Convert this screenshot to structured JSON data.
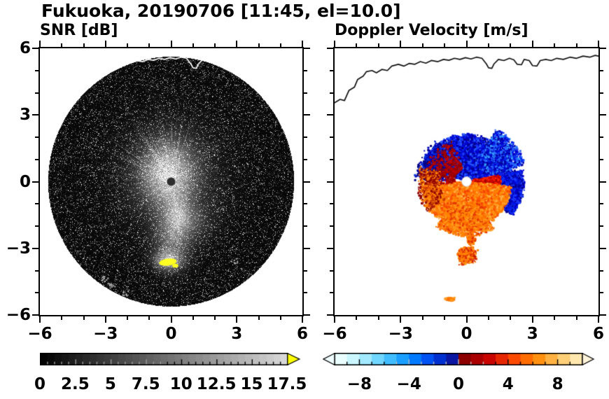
{
  "figure": {
    "title": "Fukuoka, 20190706 [11:45, el=10.0]",
    "background": "#ffffff",
    "text_color": "#000000"
  },
  "coastline": [
    [
      -6.0,
      3.55
    ],
    [
      -5.75,
      3.7
    ],
    [
      -5.55,
      3.65
    ],
    [
      -5.35,
      4.1
    ],
    [
      -5.1,
      4.25
    ],
    [
      -4.95,
      4.6
    ],
    [
      -4.7,
      4.75
    ],
    [
      -4.55,
      4.95
    ],
    [
      -4.3,
      5.0
    ],
    [
      -4.1,
      4.9
    ],
    [
      -3.85,
      5.05
    ],
    [
      -3.6,
      5.0
    ],
    [
      -3.4,
      5.2
    ],
    [
      -3.1,
      5.28
    ],
    [
      -2.85,
      5.2
    ],
    [
      -2.6,
      5.32
    ],
    [
      -2.35,
      5.28
    ],
    [
      -2.1,
      5.4
    ],
    [
      -1.85,
      5.33
    ],
    [
      -1.6,
      5.45
    ],
    [
      -1.3,
      5.4
    ],
    [
      -1.05,
      5.5
    ],
    [
      -0.8,
      5.46
    ],
    [
      -0.55,
      5.55
    ],
    [
      -0.3,
      5.5
    ],
    [
      -0.05,
      5.58
    ],
    [
      0.2,
      5.52
    ],
    [
      0.45,
      5.6
    ],
    [
      0.7,
      5.55
    ],
    [
      0.9,
      5.3
    ],
    [
      1.0,
      5.12
    ],
    [
      1.15,
      5.1
    ],
    [
      1.25,
      5.3
    ],
    [
      1.45,
      5.5
    ],
    [
      1.7,
      5.45
    ],
    [
      1.95,
      5.55
    ],
    [
      2.15,
      5.48
    ],
    [
      2.3,
      5.28
    ],
    [
      2.5,
      5.26
    ],
    [
      2.62,
      5.5
    ],
    [
      2.85,
      5.45
    ],
    [
      3.0,
      5.22
    ],
    [
      3.2,
      5.2
    ],
    [
      3.35,
      5.45
    ],
    [
      3.6,
      5.5
    ],
    [
      3.85,
      5.45
    ],
    [
      4.1,
      5.55
    ],
    [
      4.4,
      5.5
    ],
    [
      4.7,
      5.6
    ],
    [
      5.0,
      5.55
    ],
    [
      5.3,
      5.65
    ],
    [
      5.6,
      5.6
    ],
    [
      5.85,
      5.68
    ],
    [
      6.0,
      5.65
    ]
  ],
  "chart_data": [
    {
      "type": "heatmap",
      "panel": "snr",
      "title": "SNR [dB]",
      "xlabel": "",
      "ylabel": "",
      "xlim": [
        -6,
        6
      ],
      "ylim": [
        -6,
        6
      ],
      "xticks": {
        "major": [
          -6,
          -3,
          0,
          3,
          6
        ],
        "minor": [
          -5,
          -4,
          -2,
          -1,
          1,
          2,
          4,
          5
        ],
        "labels": [
          "−6",
          "−3",
          "0",
          "3",
          "6"
        ]
      },
      "yticks": {
        "major": [
          6,
          3,
          0,
          -3,
          -6
        ],
        "minor": [
          5,
          4,
          2,
          1,
          -1,
          -2,
          -4,
          -5
        ],
        "labels": [
          "6",
          "3",
          "0",
          "−3",
          "−6"
        ]
      },
      "colorbar": {
        "range": [
          0,
          17.5
        ],
        "major_tick_step": 2.5,
        "minor_tick_step": 0.5,
        "tick_values": [
          0,
          2.5,
          5,
          7.5,
          10,
          12.5,
          15,
          17.5
        ],
        "tick_labels": [
          "0",
          "2.5",
          "5",
          "7.5",
          "10",
          "12.5",
          "15",
          "17.5"
        ],
        "gray_min": "#000000",
        "gray_max": "#dadada",
        "over_arrow_color": "#ffff00"
      },
      "features": {
        "scan_disk": {
          "center": [
            0,
            0
          ],
          "radius": 5.62,
          "color": "#070707"
        },
        "center_marker": {
          "center": [
            0,
            0
          ],
          "radius_units": 0.19,
          "color": "#2e2e2e"
        },
        "echo_core": {
          "center": [
            -0.15,
            0.35
          ],
          "sigma": [
            1.1,
            1.35
          ],
          "peak": 210
        },
        "echo_halo": {
          "center": [
            0,
            0.2
          ],
          "sigma": [
            2.0,
            2.2
          ],
          "peak": 70
        },
        "south_plume": [
          {
            "center": [
              0.05,
              -2.6
            ],
            "sigma": [
              0.8,
              1.2
            ],
            "peak": 135
          },
          {
            "center": [
              0.3,
              -1.5
            ],
            "sigma": [
              0.55,
              0.9
            ],
            "peak": 120
          },
          {
            "center": [
              1.0,
              -1.8
            ],
            "sigma": [
              0.9,
              0.8
            ],
            "peak": 65
          },
          {
            "center": [
              -0.15,
              -3.55
            ],
            "sigma": [
              0.6,
              0.4
            ],
            "peak": 200
          }
        ],
        "saturated_spot": {
          "center": [
            -0.15,
            -3.62
          ],
          "rx": 0.4,
          "ry": 0.16,
          "color": "#ffff22"
        },
        "specks": [
          [
            -2.75,
            -4.65
          ],
          [
            -2.1,
            -5.0
          ],
          [
            -3.05,
            -4.35
          ],
          [
            2.85,
            -3.55
          ]
        ],
        "coastline_color": "#ffffff"
      }
    },
    {
      "type": "heatmap",
      "panel": "doppler",
      "title": "Doppler Velocity [m/s]",
      "xlabel": "",
      "ylabel": "",
      "xlim": [
        -6,
        6
      ],
      "ylim": [
        -6,
        6
      ],
      "xticks": {
        "major": [
          -6,
          -3,
          0,
          3,
          6
        ],
        "minor": [
          -5,
          -4,
          -2,
          -1,
          1,
          2,
          4,
          5
        ],
        "labels": [
          "−6",
          "−3",
          "0",
          "3",
          "6"
        ]
      },
      "yticks": {
        "major": [
          6,
          3,
          0,
          -3,
          -6
        ],
        "minor": [
          5,
          4,
          2,
          1,
          -1,
          -2,
          -4,
          -5
        ],
        "labels": []
      },
      "colorbar": {
        "range": [
          -10,
          10
        ],
        "minor_tick_step": 1,
        "tick_values": [
          -8,
          -4,
          0,
          4,
          8
        ],
        "tick_labels": [
          "−8",
          "−4",
          "0",
          "4",
          "8"
        ],
        "segment_colors": [
          "#eaffff",
          "#c9f6ff",
          "#a0e9ff",
          "#70d5ff",
          "#41bdff",
          "#1a9eff",
          "#007aff",
          "#0052f2",
          "#0030cf",
          "#0b17a0",
          "#8d0000",
          "#ab0000",
          "#c90500",
          "#e62600",
          "#fb4a00",
          "#ff6d00",
          "#ff9010",
          "#ffb241",
          "#ffcf78",
          "#ffe7ae"
        ],
        "under_arrow_color": "#f0ffff",
        "over_arrow_color": "#fff3da"
      },
      "features": {
        "center_marker": {
          "center": [
            0,
            0
          ],
          "radius_units": 0.22,
          "color": "#ffffff"
        },
        "coastline_color": "#111111",
        "regions": [
          {
            "name": "toward-flow-north",
            "shape": "fan",
            "c": [
              0,
              0.05
            ],
            "a0": -72,
            "a1": 78,
            "r0": 0.12,
            "r1": 2.1,
            "pow": 0.8,
            "n": 6500,
            "colors": [
              "#0000cd",
              "#0013e8",
              "#000096",
              "#1c3cff",
              "#0000cd",
              "#000078",
              "#2a62ff"
            ]
          },
          {
            "name": "toward-lobe-northeast",
            "shape": "fan",
            "c": [
              0,
              0
            ],
            "a0": 30,
            "a1": 74,
            "r0": 1.1,
            "r1": 2.75,
            "pow": 0.9,
            "n": 1700,
            "colors": [
              "#0000cd",
              "#0022ee",
              "#0000a0",
              "#2a62ff",
              "#35a0ff"
            ]
          },
          {
            "name": "toward-specks-northwest",
            "shape": "fan",
            "c": [
              0,
              0
            ],
            "a0": -88,
            "a1": -38,
            "r0": 0.9,
            "r1": 2.35,
            "pow": 1,
            "n": 650,
            "colors": [
              "#0000bb",
              "#0030dd",
              "#000080"
            ]
          },
          {
            "name": "toward-patch-east",
            "shape": "fan",
            "c": [
              0,
              0
            ],
            "a0": 78,
            "a1": 126,
            "r0": 1.3,
            "r1": 2.6,
            "pow": 0.9,
            "n": 2000,
            "colors": [
              "#0000cc",
              "#0022ee",
              "#000092",
              "#1c3cff"
            ]
          },
          {
            "name": "away-band-east",
            "shape": "fan",
            "c": [
              0,
              0
            ],
            "a0": 80,
            "a1": 142,
            "r0": 0.28,
            "r1": 1.55,
            "pow": 0.85,
            "n": 2200,
            "colors": [
              "#cc0000",
              "#e81200",
              "#a80000",
              "#ff2d00"
            ]
          },
          {
            "name": "away-flow-south",
            "shape": "fan",
            "c": [
              0,
              -0.05
            ],
            "a0": 95,
            "a1": 268,
            "r0": 0.12,
            "r1": 2.05,
            "pow": 0.8,
            "n": 9000,
            "colors": [
              "#ff8400",
              "#ff6f00",
              "#ff9b1c",
              "#ff5a00",
              "#ffb144",
              "#f24300",
              "#ff8400"
            ]
          },
          {
            "name": "away-lobe-south",
            "shape": "fan",
            "c": [
              0,
              0
            ],
            "a0": 150,
            "a1": 214,
            "r0": 1.1,
            "r1": 2.45,
            "pow": 0.9,
            "n": 1800,
            "colors": [
              "#ff8400",
              "#ff9b1c",
              "#ff6f00",
              "#e33700"
            ]
          },
          {
            "name": "away-specks-northwest-edge",
            "shape": "fan",
            "c": [
              0,
              0
            ],
            "a0": -95,
            "a1": -20,
            "r0": 0.55,
            "r1": 1.95,
            "pow": 1,
            "n": 520,
            "colors": [
              "#8d0000",
              "#a40000",
              "#c00000"
            ]
          },
          {
            "name": "away-specks-west",
            "shape": "fan",
            "c": [
              0,
              0
            ],
            "a0": 232,
            "a1": 288,
            "r0": 1.25,
            "r1": 2.25,
            "pow": 1,
            "n": 520,
            "colors": [
              "#ff8400",
              "#c83c00",
              "#8d0000"
            ]
          },
          {
            "name": "detached-echo-south",
            "shape": "gauss",
            "c": [
              0.02,
              -3.32
            ],
            "s": [
              0.3,
              0.27
            ],
            "n": 1500,
            "colors": [
              "#ff8400",
              "#ff6f00",
              "#e03400",
              "#ffa428",
              "#c81e00"
            ]
          },
          {
            "name": "neck-echo",
            "shape": "gauss",
            "c": [
              0.2,
              -2.6
            ],
            "s": [
              0.16,
              0.22
            ],
            "n": 170,
            "colors": [
              "#ff8400",
              "#ff6f00",
              "#e03400"
            ]
          },
          {
            "name": "small-echo-southwest",
            "shape": "gauss",
            "c": [
              -0.75,
              -5.28
            ],
            "s": [
              0.17,
              0.06
            ],
            "n": 150,
            "colors": [
              "#ff8400",
              "#ffa428",
              "#ff6f00"
            ]
          }
        ]
      }
    }
  ]
}
